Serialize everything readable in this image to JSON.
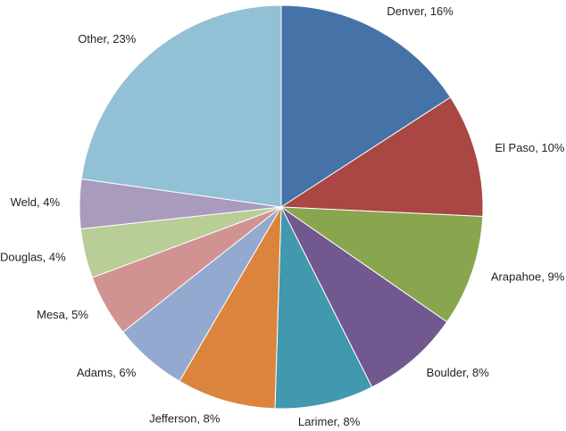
{
  "chart_data": {
    "type": "pie",
    "categories": [
      "Denver",
      "El Paso",
      "Arapahoe",
      "Boulder",
      "Larimer",
      "Jefferson",
      "Adams",
      "Mesa",
      "Douglas",
      "Weld",
      "Other"
    ],
    "values": [
      16,
      10,
      9,
      8,
      8,
      8,
      6,
      5,
      4,
      4,
      23
    ],
    "value_labels": [
      "16%",
      "10%",
      "9%",
      "8%",
      "8%",
      "8%",
      "6%",
      "5%",
      "4%",
      "4%",
      "23%"
    ],
    "colors": [
      "#4572a7",
      "#aa4643",
      "#89a54e",
      "#71588f",
      "#4198af",
      "#db843d",
      "#93a9cf",
      "#d19392",
      "#b9cd96",
      "#a99bbd",
      "#92c0d4"
    ]
  }
}
